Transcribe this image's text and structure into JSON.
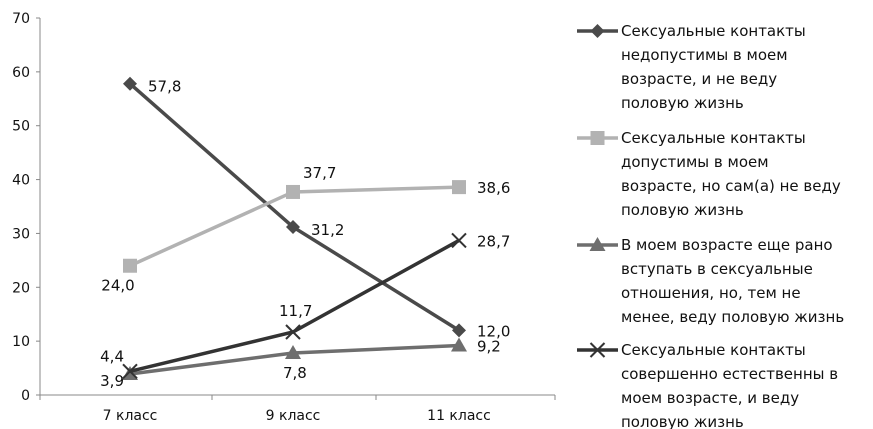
{
  "chart_data": {
    "type": "line",
    "categories": [
      "7 класс",
      "9 класс",
      "11 класс"
    ],
    "ylim": [
      0,
      70
    ],
    "yticks": [
      0,
      10,
      20,
      30,
      40,
      50,
      60,
      70
    ],
    "grid": false,
    "legend_position": "right",
    "series": [
      {
        "name": "Сексуальные контакты недопустимы в моем возрасте, и не веду половую жизнь",
        "legend_lines": [
          "Сексуальные контакты",
          "недопустимы в моем",
          "возрасте, и не веду",
          "половую жизнь"
        ],
        "values": [
          57.8,
          31.2,
          12.0
        ],
        "labels": [
          "57,8",
          "31,2",
          "12,0"
        ],
        "color": "#4a4a4a",
        "marker": "diamond"
      },
      {
        "name": "Сексуальные контакты допустимы в моем возрасте, но сам(а) не веду половую жизнь",
        "legend_lines": [
          "Сексуальные контакты",
          "допустимы в моем",
          "возрасте, но сам(а) не веду",
          "половую жизнь"
        ],
        "values": [
          24.0,
          37.7,
          38.6
        ],
        "labels": [
          "24,0",
          "37,7",
          "38,6"
        ],
        "color": "#b2b2b2",
        "marker": "square"
      },
      {
        "name": "В моем возрасте еще рано вступать в сексуальные отношения, но, тем не менее, веду половую жизнь",
        "legend_lines": [
          "В моем возрасте еще рано",
          "вступать в сексуальные",
          "отношения, но, тем не",
          "менее, веду половую жизнь"
        ],
        "values": [
          3.9,
          7.8,
          9.2
        ],
        "labels": [
          "3,9",
          "7,8",
          "9,2"
        ],
        "color": "#6e6e6e",
        "marker": "triangle"
      },
      {
        "name": "Сексуальные контакты совершенно естественны в моем возрасте, и веду половую жизнь",
        "legend_lines": [
          "Сексуальные контакты",
          "совершенно естественны в",
          "моем возрасте, и веду",
          "половую жизнь"
        ],
        "values": [
          4.4,
          11.7,
          28.7
        ],
        "labels": [
          "4,4",
          "11,7",
          "28,7"
        ],
        "color": "#333333",
        "marker": "x"
      }
    ]
  }
}
